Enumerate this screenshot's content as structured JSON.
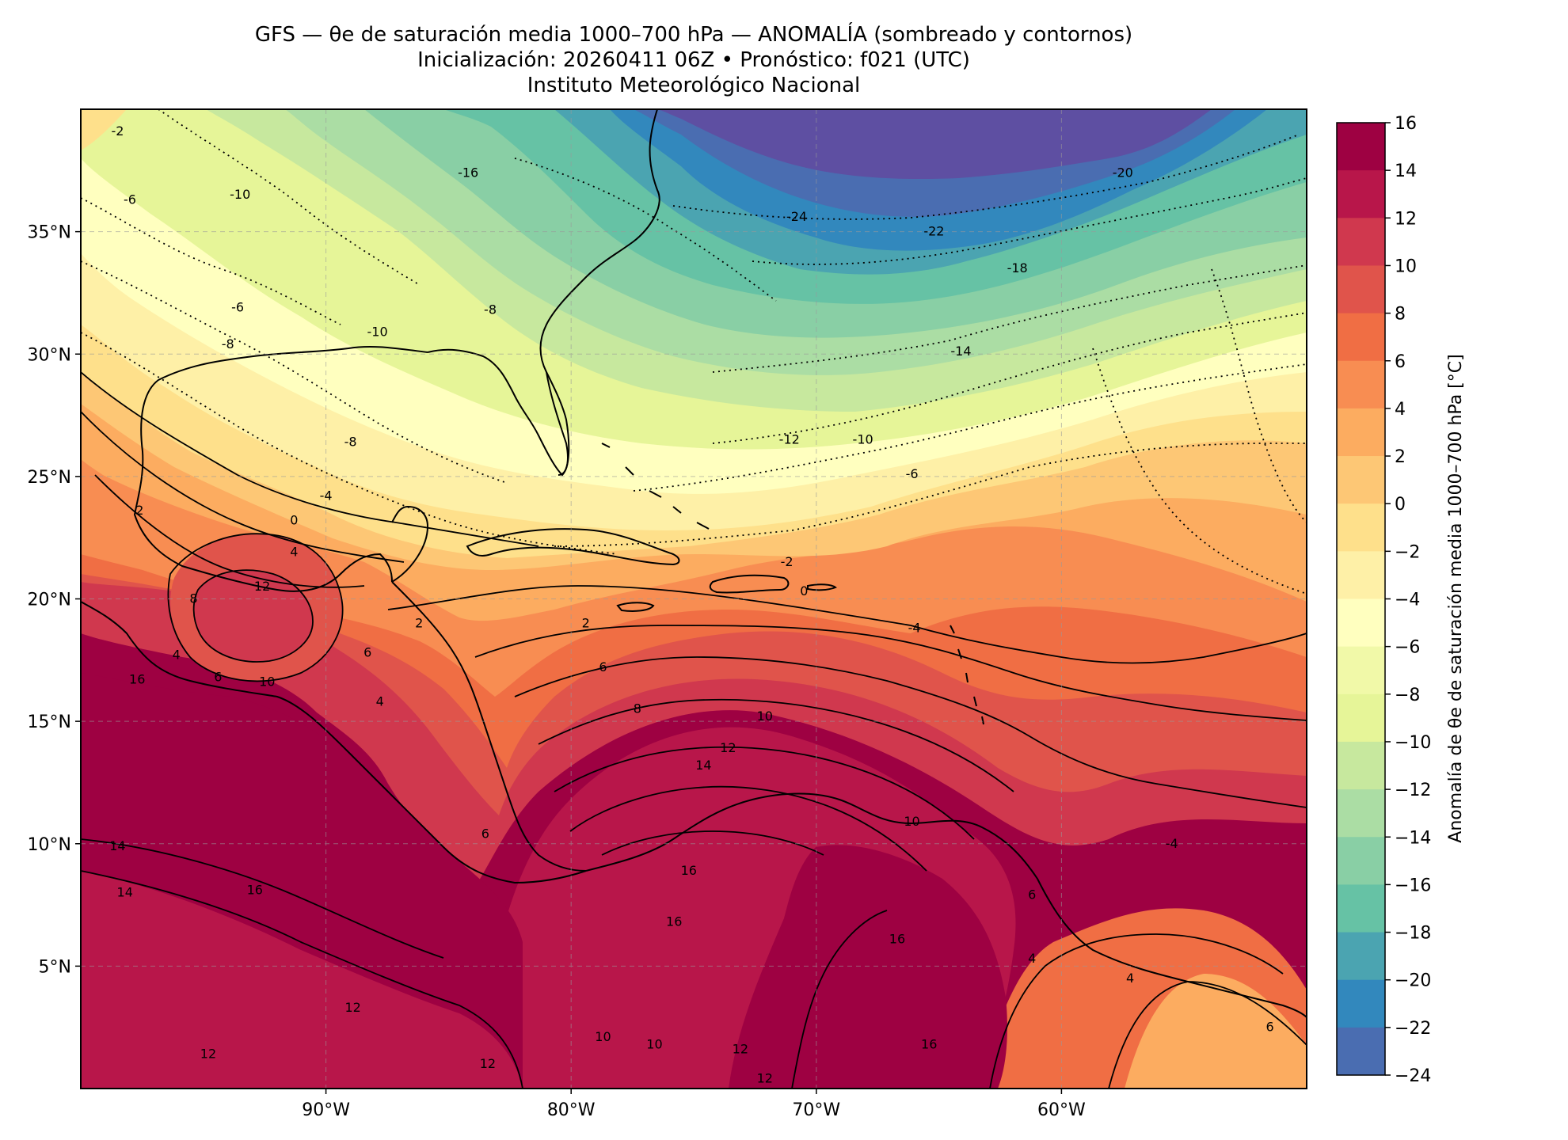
{
  "title": {
    "line1": "GFS — θe de saturación media 1000–700 hPa — ANOMALÍA (sombreado y contornos)",
    "line2": "Inicialización: 20260411 06Z   •   Pronóstico: f021 (UTC)",
    "line3": "Instituto Meteorológico Nacional"
  },
  "axes": {
    "lat_ticks": [
      "35°N",
      "30°N",
      "25°N",
      "20°N",
      "15°N",
      "10°N",
      "5°N"
    ],
    "lon_ticks": [
      "90°W",
      "80°W",
      "70°W",
      "60°W"
    ],
    "extent": {
      "lon_min": -100,
      "lon_max": -50,
      "lat_min": 0,
      "lat_max": 40
    },
    "grid": true
  },
  "colorbar": {
    "label": "Anomalía de θe de saturación media 1000–700 hPa [°C]",
    "ticks": [
      "16",
      "14",
      "12",
      "10",
      "8",
      "6",
      "4",
      "2",
      "0",
      "−2",
      "−4",
      "−6",
      "−8",
      "−10",
      "−12",
      "−14",
      "−16",
      "−18",
      "−20",
      "−22",
      "−24"
    ],
    "colors": [
      "#9e0142",
      "#b8164a",
      "#d0384e",
      "#e0544b",
      "#f06e44",
      "#f88d52",
      "#fcac60",
      "#fdc775",
      "#fee08b",
      "#fef0a7",
      "#ffffbf",
      "#f1f9a8",
      "#e6f598",
      "#c7e89e",
      "#abdda4",
      "#89cfa5",
      "#66c2a5",
      "#4ba4b1",
      "#3288bd",
      "#4a6db1",
      "#5e4fa2"
    ]
  },
  "contour_labels": [
    {
      "text": "-2",
      "lon": -98.5,
      "lat": 39.1
    },
    {
      "text": "-10",
      "lon": -93.5,
      "lat": 36.5
    },
    {
      "text": "-6",
      "lon": -98.0,
      "lat": 36.3
    },
    {
      "text": "-16",
      "lon": -84.2,
      "lat": 37.4
    },
    {
      "text": "-24",
      "lon": -70.8,
      "lat": 35.6
    },
    {
      "text": "-22",
      "lon": -65.2,
      "lat": 35.0
    },
    {
      "text": "-20",
      "lon": -57.5,
      "lat": 37.4
    },
    {
      "text": "-18",
      "lon": -61.8,
      "lat": 33.5
    },
    {
      "text": "-6",
      "lon": -93.6,
      "lat": 31.9
    },
    {
      "text": "-8",
      "lon": -83.3,
      "lat": 31.8
    },
    {
      "text": "-10",
      "lon": -87.9,
      "lat": 30.9
    },
    {
      "text": "-8",
      "lon": -94.0,
      "lat": 30.4
    },
    {
      "text": "-14",
      "lon": -64.1,
      "lat": 30.1
    },
    {
      "text": "-8",
      "lon": -89.0,
      "lat": 26.4
    },
    {
      "text": "-12",
      "lon": -71.1,
      "lat": 26.5
    },
    {
      "text": "-10",
      "lon": -68.1,
      "lat": 26.5
    },
    {
      "text": "-6",
      "lon": -66.1,
      "lat": 25.1
    },
    {
      "text": "-4",
      "lon": -90.0,
      "lat": 24.2
    },
    {
      "text": "0",
      "lon": -91.3,
      "lat": 23.2
    },
    {
      "text": "2",
      "lon": -97.6,
      "lat": 23.6
    },
    {
      "text": "4",
      "lon": -91.3,
      "lat": 21.9
    },
    {
      "text": "-2",
      "lon": -71.2,
      "lat": 21.5
    },
    {
      "text": "0",
      "lon": -70.5,
      "lat": 20.3
    },
    {
      "text": "8",
      "lon": -95.4,
      "lat": 20.0
    },
    {
      "text": "12",
      "lon": -92.6,
      "lat": 20.5
    },
    {
      "text": "2",
      "lon": -86.2,
      "lat": 19.0
    },
    {
      "text": "2",
      "lon": -79.4,
      "lat": 19.0
    },
    {
      "text": "-4",
      "lon": -66.0,
      "lat": 18.8
    },
    {
      "text": "6",
      "lon": -88.3,
      "lat": 17.8
    },
    {
      "text": "6",
      "lon": -78.7,
      "lat": 17.2
    },
    {
      "text": "4",
      "lon": -96.1,
      "lat": 17.7
    },
    {
      "text": "6",
      "lon": -94.4,
      "lat": 16.8
    },
    {
      "text": "10",
      "lon": -92.4,
      "lat": 16.6
    },
    {
      "text": "4",
      "lon": -87.8,
      "lat": 15.8
    },
    {
      "text": "8",
      "lon": -77.3,
      "lat": 15.5
    },
    {
      "text": "10",
      "lon": -72.1,
      "lat": 15.2
    },
    {
      "text": "12",
      "lon": -73.6,
      "lat": 13.9
    },
    {
      "text": "14",
      "lon": -74.6,
      "lat": 13.2
    },
    {
      "text": "16",
      "lon": -97.7,
      "lat": 16.7
    },
    {
      "text": "10",
      "lon": -66.1,
      "lat": 10.9
    },
    {
      "text": "6",
      "lon": -83.5,
      "lat": 10.4
    },
    {
      "text": "14",
      "lon": -98.5,
      "lat": 9.9
    },
    {
      "text": "16",
      "lon": -75.2,
      "lat": 8.9
    },
    {
      "text": "14",
      "lon": -98.2,
      "lat": 8.0
    },
    {
      "text": "16",
      "lon": -92.9,
      "lat": 8.1
    },
    {
      "text": "6",
      "lon": -61.2,
      "lat": 7.9
    },
    {
      "text": "16",
      "lon": -75.8,
      "lat": 6.8
    },
    {
      "text": "16",
      "lon": -66.7,
      "lat": 6.1
    },
    {
      "text": "4",
      "lon": -61.2,
      "lat": 5.3
    },
    {
      "text": "4",
      "lon": -57.2,
      "lat": 4.5
    },
    {
      "text": "12",
      "lon": -88.9,
      "lat": 3.3
    },
    {
      "text": "10",
      "lon": -78.7,
      "lat": 2.1
    },
    {
      "text": "10",
      "lon": -76.6,
      "lat": 1.8
    },
    {
      "text": "12",
      "lon": -73.1,
      "lat": 1.6
    },
    {
      "text": "12",
      "lon": -94.8,
      "lat": 1.4
    },
    {
      "text": "12",
      "lon": -83.4,
      "lat": 1.0
    },
    {
      "text": "16",
      "lon": -65.4,
      "lat": 1.8
    },
    {
      "text": "12",
      "lon": -72.1,
      "lat": 0.4
    },
    {
      "text": "-4",
      "lon": -55.5,
      "lat": 10.0
    },
    {
      "text": "6",
      "lon": -51.5,
      "lat": 2.5
    }
  ]
}
